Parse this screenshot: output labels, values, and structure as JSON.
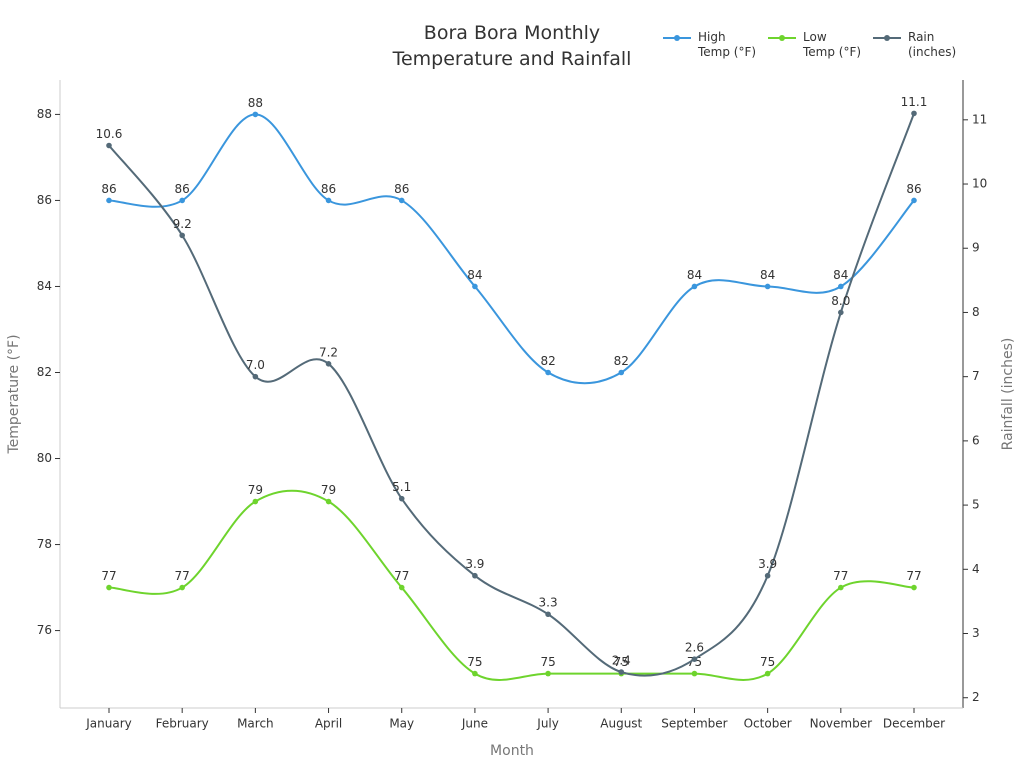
{
  "chart_data": {
    "type": "line",
    "title": "Bora Bora Monthly\nTemperature and Rainfall",
    "xlabel": "Month",
    "ylabel": "Temperature (°F)",
    "y2label": "Rainfall (inches)",
    "categories": [
      "January",
      "February",
      "March",
      "April",
      "May",
      "June",
      "July",
      "August",
      "September",
      "October",
      "November",
      "December"
    ],
    "series": [
      {
        "name": "High\nTemp (°F)",
        "color": "#3a96dd",
        "values": [
          86,
          86,
          88,
          86,
          86,
          84,
          82,
          82,
          84,
          84,
          84,
          86
        ]
      },
      {
        "name": "Low\nTemp (°F)",
        "color": "#6ed42d",
        "values": [
          77,
          77,
          79,
          79,
          77,
          75,
          75,
          75,
          75,
          75,
          77,
          77
        ]
      },
      {
        "name": "Rain\n(inches)",
        "color": "#546a78",
        "axis": "y2",
        "values": [
          10.6,
          9.2,
          7.0,
          7.2,
          5.1,
          3.9,
          3.3,
          2.4,
          2.6,
          3.9,
          8.0,
          11.1
        ],
        "value_labels": [
          "10.6",
          "9.2",
          "7.0",
          "7.2",
          "5.1",
          "3.9",
          "3.3",
          "2.4",
          "2.6",
          "3.9",
          "8.0",
          "11.1"
        ]
      }
    ],
    "ylim": [
      74.2,
      88.8
    ],
    "yticks": [
      76,
      78,
      80,
      82,
      84,
      86,
      88
    ],
    "y2lim": [
      1.84,
      11.62
    ],
    "y2ticks": [
      2,
      3,
      4,
      5,
      6,
      7,
      8,
      9,
      10,
      11
    ],
    "legend": "upper right",
    "smooth": true
  }
}
